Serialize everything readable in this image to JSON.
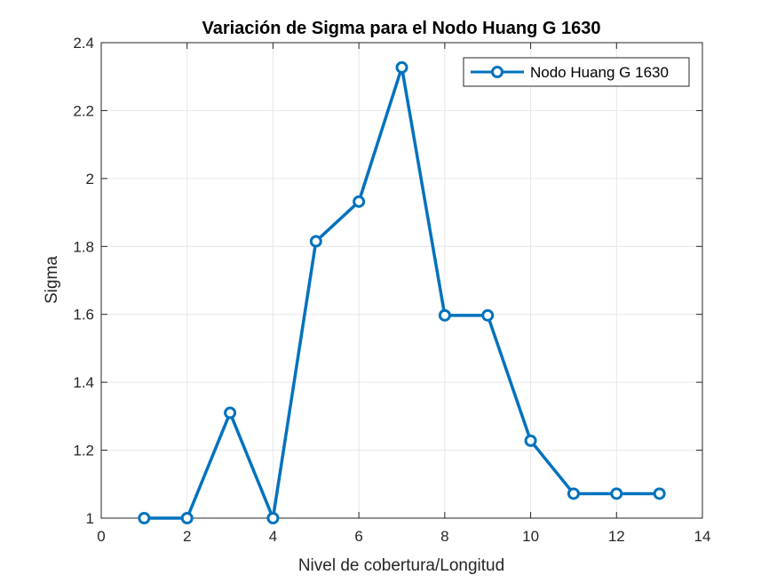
{
  "chart_data": {
    "type": "line",
    "title": "Variación de Sigma para el Nodo Huang G 1630",
    "xlabel": "Nivel de cobertura/Longitud",
    "ylabel": "Sigma",
    "xlim": [
      0,
      14
    ],
    "ylim": [
      1,
      2.4
    ],
    "xticks": [
      0,
      2,
      4,
      6,
      8,
      10,
      12,
      14
    ],
    "yticks": [
      1,
      1.2,
      1.4,
      1.6,
      1.8,
      2,
      2.2,
      2.4
    ],
    "xtick_labels": [
      "0",
      "2",
      "4",
      "6",
      "8",
      "10",
      "12",
      "14"
    ],
    "ytick_labels": [
      "1",
      "1.2",
      "1.4",
      "1.6",
      "1.8",
      "2",
      "2.2",
      "2.4"
    ],
    "grid": true,
    "legend_position": "top-right",
    "series": [
      {
        "name": "Nodo Huang G 1630",
        "color": "#0072BD",
        "marker": "circle",
        "x": [
          1,
          2,
          3,
          4,
          5,
          6,
          7,
          8,
          9,
          10,
          11,
          12,
          13
        ],
        "y": [
          1.0,
          1.0,
          1.31,
          1.0,
          1.815,
          1.932,
          2.327,
          1.597,
          1.597,
          1.228,
          1.072,
          1.072,
          1.072
        ]
      }
    ]
  }
}
